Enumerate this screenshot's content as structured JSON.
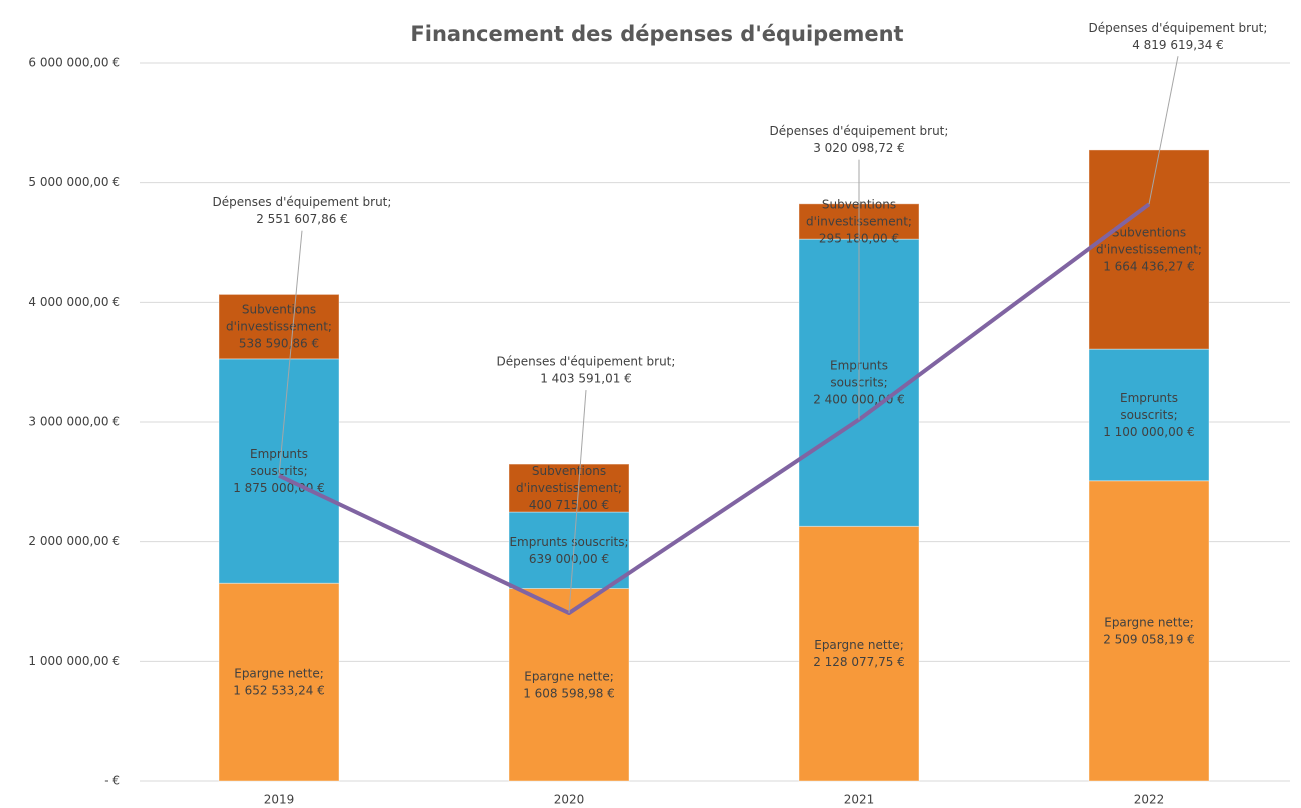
{
  "chart_data": {
    "type": "bar",
    "stacked": true,
    "title": "Financement des dépenses d'équipement",
    "categories": [
      "2019",
      "2020",
      "2021",
      "2022"
    ],
    "series": [
      {
        "name": "Epargne nette",
        "color": "#f7993a",
        "values": [
          1652533.24,
          1608598.98,
          2128077.75,
          2509058.19
        ],
        "value_labels": [
          "Epargne nette;\n1 652 533,24 €",
          "Epargne nette;\n1 608 598,98 €",
          "Epargne nette;\n2 128 077,75 €",
          "Epargne nette;\n2 509 058,19 €"
        ]
      },
      {
        "name": "Emprunts souscrits",
        "color": "#38acd3",
        "values": [
          1875000,
          639000,
          2400000,
          1100000
        ],
        "value_labels": [
          "Emprunts\nsouscrits;\n1 875 000,00 €",
          "Emprunts souscrits;\n639 000,00 €",
          "Emprunts\nsouscrits;\n2 400 000,00 €",
          "Emprunts\nsouscrits;\n1 100 000,00 €"
        ]
      },
      {
        "name": "Subventions d'investissement",
        "color": "#c65a13",
        "values": [
          538590.86,
          400715,
          295180,
          1664436.27
        ],
        "value_labels": [
          "Subventions\nd'investissement;\n538 590,86 €",
          "Subventions\nd'investissement;\n400 715,00 €",
          "Subventions\nd'investissement;\n295 180,00 €",
          "Subventions\nd'investissement;\n1 664 436,27 €"
        ]
      },
      {
        "name": "Dépenses d'équipement brut",
        "type": "line",
        "color": "#8064a2",
        "values": [
          2551607.86,
          1403591.01,
          3020098.72,
          4819619.34
        ],
        "value_labels": [
          "Dépenses d'équipement brut;\n2 551 607,86 €",
          "Dépenses d'équipement brut;\n1 403 591,01 €",
          "Dépenses d'équipement brut;\n3 020 098,72 €",
          "Dépenses d'équipement brut;\n4 819 619,34 €"
        ]
      }
    ],
    "ylim": [
      0,
      6000000
    ],
    "yticks": [
      {
        "value": 0,
        "label": "-  €"
      },
      {
        "value": 1000000,
        "label": "1 000 000,00 €"
      },
      {
        "value": 2000000,
        "label": "2 000 000,00 €"
      },
      {
        "value": 3000000,
        "label": "3 000 000,00 €"
      },
      {
        "value": 4000000,
        "label": "4 000 000,00 €"
      },
      {
        "value": 5000000,
        "label": "5 000 000,00 €"
      },
      {
        "value": 6000000,
        "label": "6 000 000,00 €"
      }
    ],
    "grid": true
  }
}
